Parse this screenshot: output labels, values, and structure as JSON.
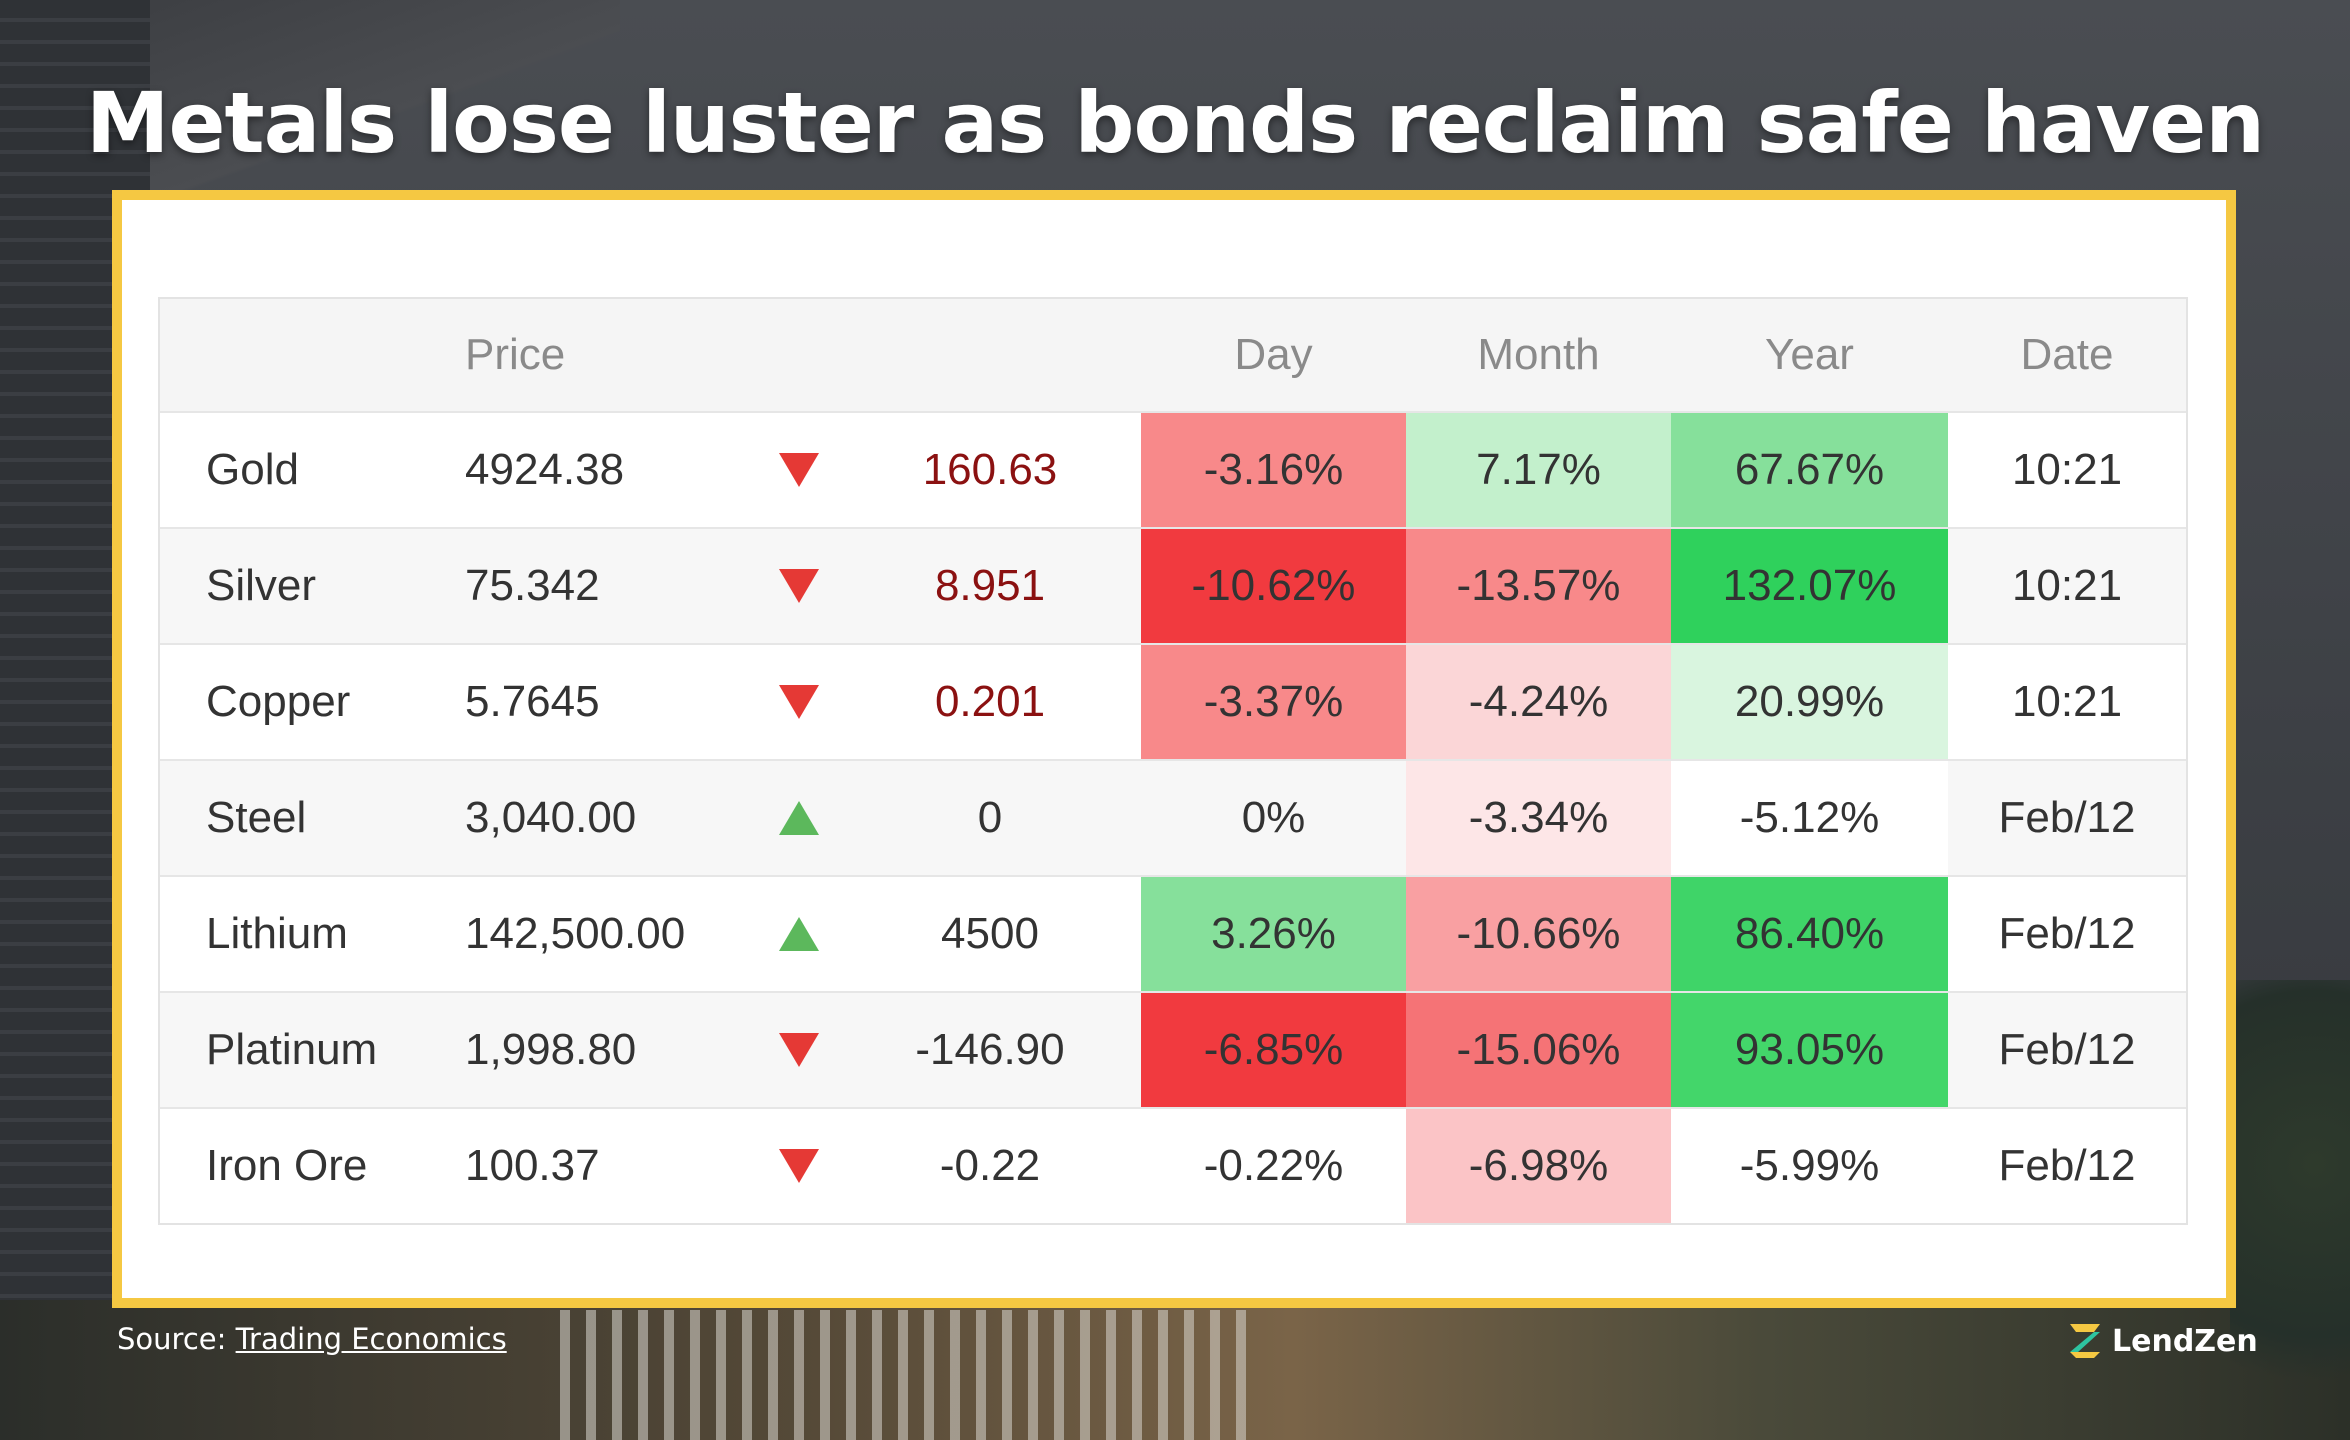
{
  "title": "Metals lose luster as bonds reclaim safe haven",
  "table": {
    "headers": {
      "name": "",
      "price": "Price",
      "arrow": "",
      "change": "",
      "day": "Day",
      "month": "Month",
      "year": "Year",
      "date": "Date"
    },
    "rows": [
      {
        "name": "Gold",
        "price": "4924.38",
        "direction": "down",
        "change": "160.63",
        "change_color": "#8b1111",
        "day": "-3.16%",
        "day_bg": "#f8898a",
        "month": "7.17%",
        "month_bg": "#c3f0cc",
        "year": "67.67%",
        "year_bg": "#86e09b",
        "date": "10:21"
      },
      {
        "name": "Silver",
        "price": "75.342",
        "direction": "down",
        "change": "8.951",
        "change_color": "#8b1111",
        "day": "-10.62%",
        "day_bg": "#f13a3f",
        "month": "-13.57%",
        "month_bg": "#f8898a",
        "year": "132.07%",
        "year_bg": "#2fd15c",
        "date": "10:21"
      },
      {
        "name": "Copper",
        "price": "5.7645",
        "direction": "down",
        "change": "0.201",
        "change_color": "#8b1111",
        "day": "-3.37%",
        "day_bg": "#f8898a",
        "month": "-4.24%",
        "month_bg": "#fbd6d7",
        "year": "20.99%",
        "year_bg": "#d9f5df",
        "date": "10:21"
      },
      {
        "name": "Steel",
        "price": "3,040.00",
        "direction": "up",
        "change": "0",
        "change_color": "#333333",
        "day": "0%",
        "day_bg": "",
        "month": "-3.34%",
        "month_bg": "#fde6e7",
        "year": "-5.12%",
        "year_bg": "#ffffff",
        "date": "Feb/12"
      },
      {
        "name": "Lithium",
        "price": "142,500.00",
        "direction": "up",
        "change": "4500",
        "change_color": "#333333",
        "day": "3.26%",
        "day_bg": "#86e09b",
        "month": "-10.66%",
        "month_bg": "#f9a0a2",
        "year": "86.40%",
        "year_bg": "#3fd468",
        "date": "Feb/12"
      },
      {
        "name": "Platinum",
        "price": "1,998.80",
        "direction": "down",
        "change": "-146.90",
        "change_color": "#333333",
        "day": "-6.85%",
        "day_bg": "#f13a3f",
        "month": "-15.06%",
        "month_bg": "#f57376",
        "year": "93.05%",
        "year_bg": "#43d66a",
        "date": "Feb/12"
      },
      {
        "name": "Iron Ore",
        "price": "100.37",
        "direction": "down",
        "change": "-0.22",
        "change_color": "#333333",
        "day": "-0.22%",
        "day_bg": "",
        "month": "-6.98%",
        "month_bg": "#fbc4c6",
        "year": "-5.99%",
        "year_bg": "",
        "date": "Feb/12"
      }
    ]
  },
  "source": {
    "prefix": "Source: ",
    "link_text": "Trading Economics"
  },
  "logo": {
    "text": "LendZen",
    "mark_colors": [
      "#f5c842",
      "#2ec4a0"
    ]
  },
  "colors": {
    "frame": "#f5c842",
    "down_arrow": "#e53935",
    "up_arrow": "#5cb85c"
  }
}
